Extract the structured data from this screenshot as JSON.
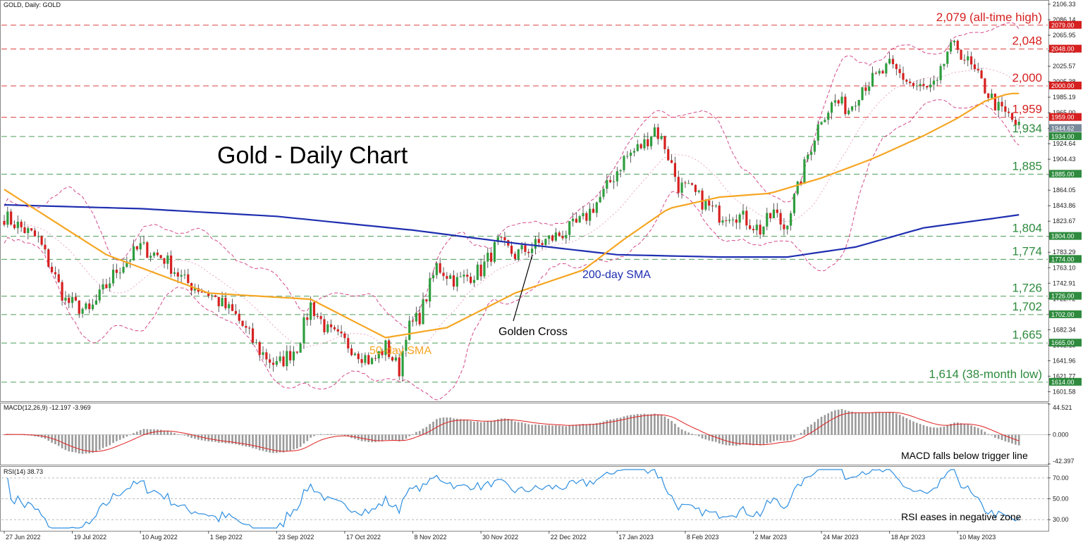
{
  "header": {
    "symbol_label": "GOLD, Daily:  GOLD"
  },
  "chart_data": {
    "type": "candlestick",
    "title": "Gold - Daily Chart",
    "colors": {
      "up": "#2e9e3e",
      "down": "#d62020",
      "sma50": "#f5a623",
      "sma200": "#1f2fb0",
      "bollinger": "#d44a8a",
      "macd_hist": "#9a9a9a",
      "macd_signal": "#e02020",
      "rsi": "#2f8fe0",
      "level_red": "#d62020",
      "level_green": "#2e8b3e"
    },
    "price_axis": {
      "ylim": [
        1590,
        2110
      ],
      "ticks": [
        "2106.33",
        "2086.14",
        "2065.95",
        "2045.76",
        "2025.57",
        "2005.38",
        "1985.19",
        "1965.00",
        "1944.62",
        "1924.64",
        "1904.43",
        "1884.24",
        "1864.05",
        "1843.86",
        "1823.67",
        "1803.48",
        "1783.29",
        "1763.10",
        "1742.91",
        "1722.72",
        "1702.53",
        "1682.34",
        "1662.15",
        "1641.96",
        "1621.77",
        "1601.58"
      ]
    },
    "x_axis": {
      "ticks": [
        "27 Jun 2022",
        "19 Jul 2022",
        "10 Aug 2022",
        "1 Sep 2022",
        "23 Sep 2022",
        "17 Oct 2022",
        "8 Nov 2022",
        "30 Nov 2022",
        "22 Dec 2022",
        "17 Jan 2023",
        "8 Feb 2023",
        "2 Mar 2023",
        "24 Mar 2023",
        "18 Apr 2023",
        "10 May 2023"
      ]
    },
    "levels": [
      {
        "value": 2079,
        "label": "2,079 (all-time high)",
        "tag": "2079.00",
        "color": "red"
      },
      {
        "value": 2048,
        "label": "2,048",
        "tag": "2048.00",
        "color": "red"
      },
      {
        "value": 2000,
        "label": "2,000",
        "tag": "2000.00",
        "color": "red"
      },
      {
        "value": 1959,
        "label": "1,959",
        "tag": "1959.00",
        "color": "red"
      },
      {
        "value": 1934,
        "label": "1,934",
        "tag": "1934.00",
        "color": "green"
      },
      {
        "value": 1885,
        "label": "1,885",
        "tag": "1885.00",
        "color": "green"
      },
      {
        "value": 1804,
        "label": "1,804",
        "tag": "1804.00",
        "color": "green"
      },
      {
        "value": 1774,
        "label": "1,774",
        "tag": "1774.00",
        "color": "green"
      },
      {
        "value": 1726,
        "label": "1,726",
        "tag": "1726.00",
        "color": "green"
      },
      {
        "value": 1702,
        "label": "1,702",
        "tag": "1702.00",
        "color": "green"
      },
      {
        "value": 1665,
        "label": "1,665",
        "tag": "1665.00",
        "color": "green"
      },
      {
        "value": 1614,
        "label": "1,614 (38-month low)",
        "tag": "1614.00",
        "color": "green"
      }
    ],
    "current_price": {
      "value": 1944.62,
      "tag": "1944.62"
    },
    "annotations": {
      "sma200": "200-day SMA",
      "sma50": "50-day SMA",
      "golden_cross": "Golden Cross",
      "macd_note": "MACD falls below trigger line",
      "rsi_note": "RSI eases in negative zone"
    },
    "anchors": [
      [
        0,
        1830
      ],
      [
        10,
        1800
      ],
      [
        18,
        1720
      ],
      [
        25,
        1705
      ],
      [
        33,
        1760
      ],
      [
        40,
        1790
      ],
      [
        47,
        1775
      ],
      [
        53,
        1745
      ],
      [
        60,
        1730
      ],
      [
        68,
        1700
      ],
      [
        75,
        1655
      ],
      [
        80,
        1635
      ],
      [
        86,
        1660
      ],
      [
        90,
        1715
      ],
      [
        95,
        1680
      ],
      [
        102,
        1660
      ],
      [
        108,
        1640
      ],
      [
        112,
        1660
      ],
      [
        116,
        1630
      ],
      [
        118,
        1680
      ],
      [
        122,
        1700
      ],
      [
        127,
        1765
      ],
      [
        133,
        1745
      ],
      [
        140,
        1760
      ],
      [
        145,
        1795
      ],
      [
        150,
        1780
      ],
      [
        155,
        1790
      ],
      [
        160,
        1800
      ],
      [
        165,
        1810
      ],
      [
        170,
        1825
      ],
      [
        176,
        1860
      ],
      [
        182,
        1905
      ],
      [
        188,
        1925
      ],
      [
        191,
        1945
      ],
      [
        194,
        1922
      ],
      [
        198,
        1870
      ],
      [
        202,
        1862
      ],
      [
        206,
        1845
      ],
      [
        210,
        1832
      ],
      [
        214,
        1835
      ],
      [
        218,
        1825
      ],
      [
        222,
        1812
      ],
      [
        226,
        1835
      ],
      [
        229,
        1815
      ],
      [
        233,
        1865
      ],
      [
        236,
        1910
      ],
      [
        240,
        1960
      ],
      [
        244,
        1980
      ],
      [
        248,
        1970
      ],
      [
        252,
        2000
      ],
      [
        256,
        2010
      ],
      [
        260,
        2025
      ],
      [
        263,
        2015
      ],
      [
        267,
        2000
      ],
      [
        271,
        1995
      ],
      [
        274,
        2000
      ],
      [
        277,
        2045
      ],
      [
        280,
        2050
      ],
      [
        283,
        2030
      ],
      [
        286,
        2010
      ],
      [
        289,
        1990
      ],
      [
        292,
        1970
      ],
      [
        295,
        1960
      ],
      [
        298,
        1945
      ]
    ],
    "sma200_points": [
      [
        0,
        1845
      ],
      [
        40,
        1840
      ],
      [
        80,
        1830
      ],
      [
        120,
        1812
      ],
      [
        150,
        1795
      ],
      [
        180,
        1780
      ],
      [
        210,
        1777
      ],
      [
        230,
        1777
      ],
      [
        250,
        1790
      ],
      [
        270,
        1815
      ],
      [
        290,
        1827
      ],
      [
        298,
        1832
      ]
    ],
    "sma50_points": [
      [
        0,
        1865
      ],
      [
        30,
        1780
      ],
      [
        60,
        1730
      ],
      [
        90,
        1722
      ],
      [
        112,
        1672
      ],
      [
        130,
        1685
      ],
      [
        150,
        1730
      ],
      [
        170,
        1760
      ],
      [
        182,
        1800
      ],
      [
        195,
        1840
      ],
      [
        210,
        1855
      ],
      [
        225,
        1860
      ],
      [
        240,
        1880
      ],
      [
        255,
        1905
      ],
      [
        270,
        1935
      ],
      [
        280,
        1958
      ],
      [
        288,
        1980
      ],
      [
        295,
        1990
      ],
      [
        298,
        1990
      ]
    ],
    "macd": {
      "name": "MACD(12,26,9)",
      "readout": "-12.197 -3.969",
      "ylim": [
        -42.397,
        44.521
      ],
      "ticks": [
        "44.521",
        "0.000",
        "-42.397"
      ]
    },
    "rsi": {
      "name": "RSI(14)",
      "readout": "38.73",
      "ylim": [
        20,
        80
      ],
      "ticks": [
        "70.00",
        "50.00",
        "30.00"
      ],
      "extra_tick": "30.00"
    },
    "rsi_tick_values": [
      70,
      50,
      30
    ]
  }
}
